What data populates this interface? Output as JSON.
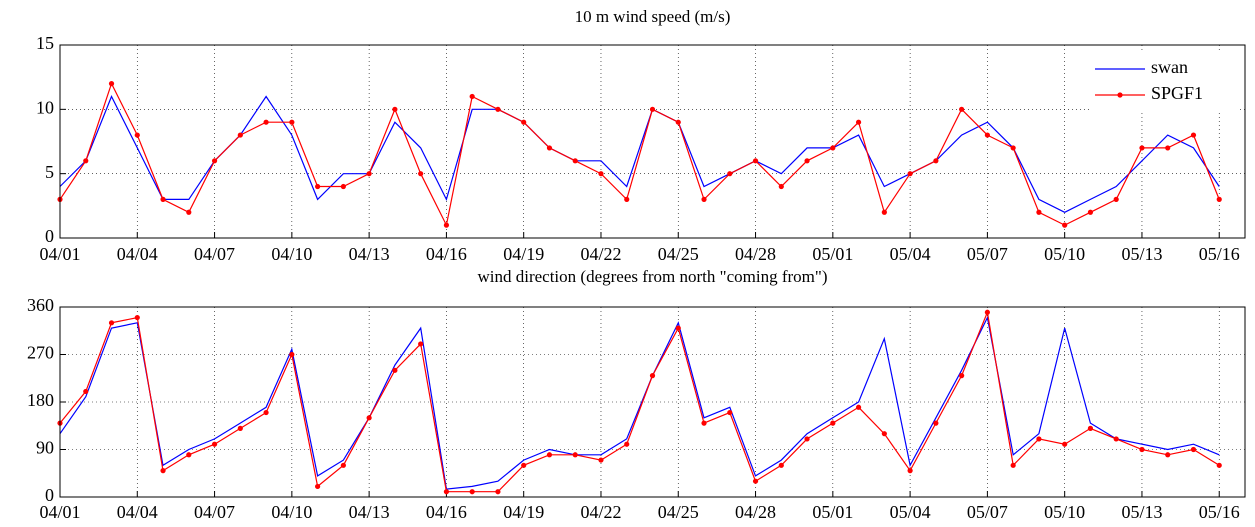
{
  "chart_data": [
    {
      "type": "line",
      "title": "10 m wind speed (m/s)",
      "x": [
        "04/01",
        "04/02",
        "04/03",
        "04/04",
        "04/05",
        "04/06",
        "04/07",
        "04/08",
        "04/09",
        "04/10",
        "04/11",
        "04/12",
        "04/13",
        "04/14",
        "04/15",
        "04/16",
        "04/17",
        "04/18",
        "04/19",
        "04/20",
        "04/21",
        "04/22",
        "04/23",
        "04/24",
        "04/25",
        "04/26",
        "04/27",
        "04/28",
        "04/29",
        "04/30",
        "05/01",
        "05/02",
        "05/03",
        "05/04",
        "05/05",
        "05/06",
        "05/07",
        "05/08",
        "05/09",
        "05/10",
        "05/11",
        "05/12",
        "05/13",
        "05/14",
        "05/15",
        "05/16"
      ],
      "series": [
        {
          "name": "swan",
          "color": "#0000ff",
          "markers": false,
          "values": [
            4,
            6,
            11,
            7,
            3,
            3,
            6,
            8,
            11,
            8,
            3,
            5,
            5,
            9,
            7,
            3,
            10,
            10,
            9,
            7,
            6,
            6,
            4,
            10,
            9,
            4,
            5,
            6,
            5,
            7,
            7,
            8,
            4,
            5,
            6,
            8,
            9,
            7,
            3,
            2,
            3,
            4,
            6,
            8,
            7,
            4
          ]
        },
        {
          "name": "SPGF1",
          "color": "#ff0000",
          "markers": true,
          "values": [
            3,
            6,
            12,
            8,
            3,
            2,
            6,
            8,
            9,
            9,
            4,
            4,
            5,
            10,
            5,
            1,
            11,
            10,
            9,
            7,
            6,
            5,
            3,
            10,
            9,
            3,
            5,
            6,
            4,
            6,
            7,
            9,
            2,
            5,
            6,
            10,
            8,
            7,
            2,
            1,
            2,
            3,
            7,
            7,
            8,
            3
          ]
        }
      ],
      "xlim": [
        "04/01",
        "05/17"
      ],
      "xticks": [
        "04/01",
        "04/04",
        "04/07",
        "04/10",
        "04/13",
        "04/16",
        "04/19",
        "04/22",
        "04/25",
        "04/28",
        "05/01",
        "05/04",
        "05/07",
        "05/10",
        "05/13",
        "05/16"
      ],
      "ylim": [
        0,
        15
      ],
      "yticks": [
        0,
        5,
        10,
        15
      ],
      "grid": true,
      "legend": "upper right"
    },
    {
      "type": "line",
      "title": "wind direction (degrees from north \"coming from\")",
      "x": [
        "04/01",
        "04/02",
        "04/03",
        "04/04",
        "04/05",
        "04/06",
        "04/07",
        "04/08",
        "04/09",
        "04/10",
        "04/11",
        "04/12",
        "04/13",
        "04/14",
        "04/15",
        "04/16",
        "04/17",
        "04/18",
        "04/19",
        "04/20",
        "04/21",
        "04/22",
        "04/23",
        "04/24",
        "04/25",
        "04/26",
        "04/27",
        "04/28",
        "04/29",
        "04/30",
        "05/01",
        "05/02",
        "05/03",
        "05/04",
        "05/05",
        "05/06",
        "05/07",
        "05/08",
        "05/09",
        "05/10",
        "05/11",
        "05/12",
        "05/13",
        "05/14",
        "05/15",
        "05/16"
      ],
      "series": [
        {
          "color": "#0000ff",
          "markers": false,
          "values": [
            120,
            190,
            320,
            330,
            60,
            90,
            110,
            140,
            170,
            280,
            40,
            70,
            150,
            250,
            320,
            15,
            20,
            30,
            70,
            90,
            80,
            80,
            110,
            230,
            330,
            150,
            170,
            40,
            70,
            120,
            150,
            180,
            300,
            60,
            150,
            240,
            340,
            80,
            120,
            320,
            140,
            110,
            100,
            90,
            100,
            80
          ]
        },
        {
          "color": "#ff0000",
          "markers": true,
          "values": [
            140,
            200,
            330,
            340,
            50,
            80,
            100,
            130,
            160,
            270,
            20,
            60,
            150,
            240,
            290,
            10,
            10,
            10,
            60,
            80,
            80,
            70,
            100,
            230,
            320,
            140,
            160,
            30,
            60,
            110,
            140,
            170,
            120,
            50,
            140,
            230,
            350,
            60,
            110,
            100,
            130,
            110,
            90,
            80,
            90,
            60
          ]
        }
      ],
      "xlim": [
        "04/01",
        "05/17"
      ],
      "xticks": [
        "04/01",
        "04/04",
        "04/07",
        "04/10",
        "04/13",
        "04/16",
        "04/19",
        "04/22",
        "04/25",
        "04/28",
        "05/01",
        "05/04",
        "05/07",
        "05/10",
        "05/13",
        "05/16"
      ],
      "ylim": [
        0,
        360
      ],
      "yticks": [
        0,
        90,
        180,
        270,
        360
      ],
      "grid": true
    }
  ]
}
